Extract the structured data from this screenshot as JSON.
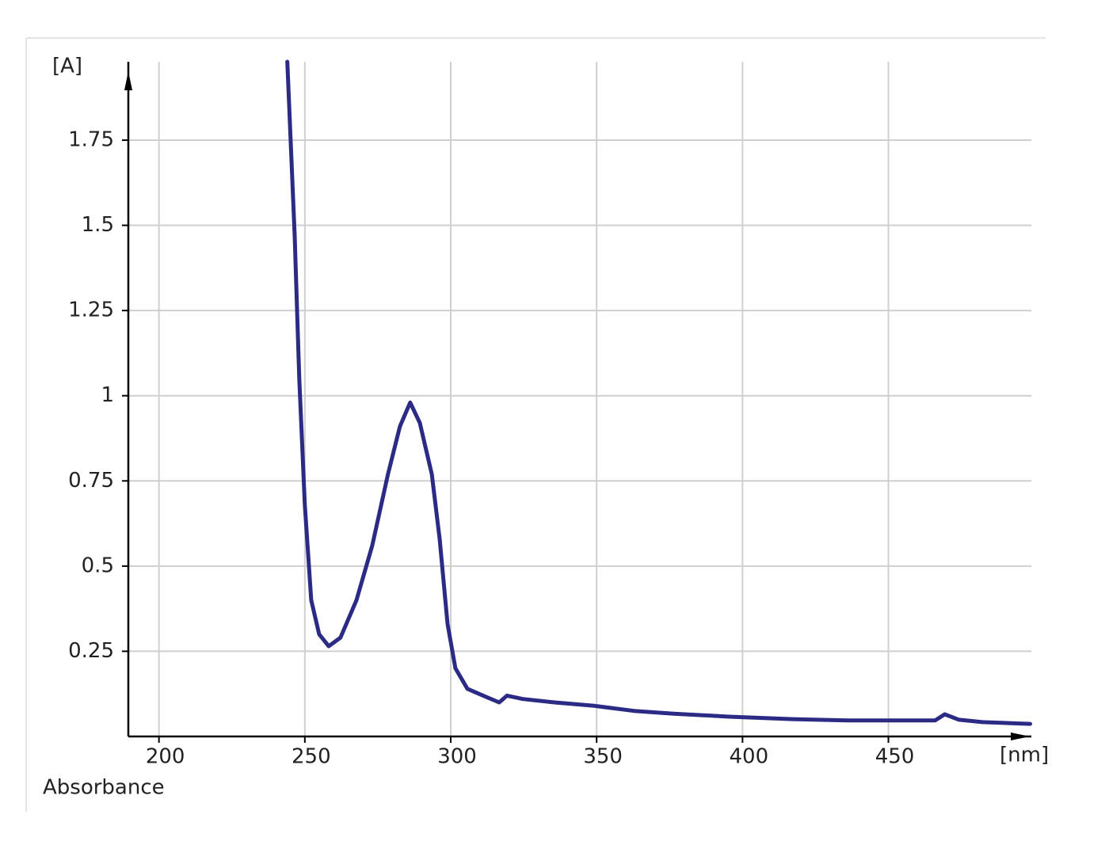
{
  "chart_data": {
    "type": "line",
    "y_unit_label": "[A]",
    "x_unit_label": "[nm]",
    "y_title": "Absorbance",
    "x": [
      244,
      246.5,
      248.1,
      250,
      252.2,
      254.9,
      258.2,
      262.2,
      267.7,
      273.1,
      278.5,
      282.6,
      286.1,
      289.4,
      293.5,
      296.2,
      298.9,
      301.6,
      305.7,
      311.1,
      316.6,
      319.3,
      324.7,
      335.6,
      349.2,
      362.8,
      376.4,
      395.4,
      417.1,
      436.1,
      466.0,
      469.3,
      474.2,
      482.3,
      498.6
    ],
    "series": [
      {
        "color": "#2b2b86",
        "values": [
          1.98,
          1.47,
          1.05,
          0.68,
          0.4,
          0.3,
          0.265,
          0.29,
          0.4,
          0.56,
          0.77,
          0.91,
          0.98,
          0.92,
          0.77,
          0.58,
          0.33,
          0.2,
          0.14,
          0.12,
          0.1,
          0.12,
          0.11,
          0.1,
          0.09,
          0.075,
          0.067,
          0.058,
          0.051,
          0.047,
          0.047,
          0.065,
          0.049,
          0.042,
          0.037
        ]
      }
    ],
    "xlim": [
      189.5,
      499
    ],
    "ylim": [
      0,
      1.98
    ],
    "xticks": [
      200,
      250,
      300,
      350,
      400,
      450
    ],
    "yticks": [
      0.25,
      0.5,
      0.75,
      1,
      1.25,
      1.5,
      1.75
    ],
    "grid": true
  }
}
